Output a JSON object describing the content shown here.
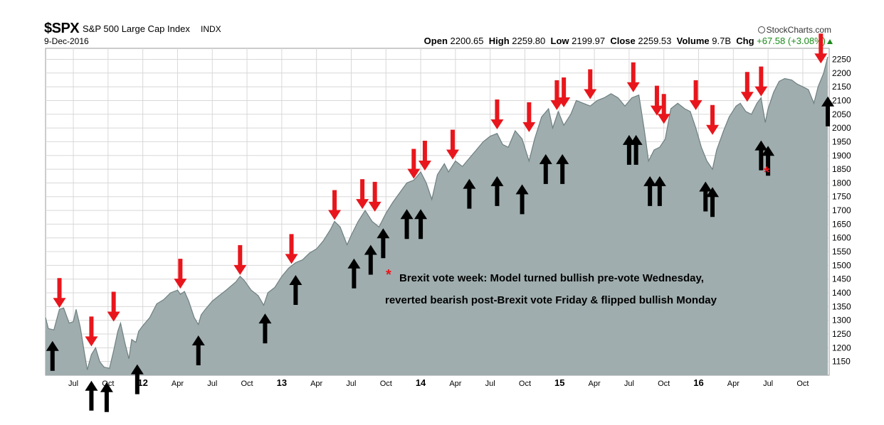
{
  "header": {
    "symbol": "$SPX",
    "name": "S&P 500 Large Cap Index",
    "exchange": "INDX",
    "date": "9-Dec-2016",
    "source": "StockCharts.com",
    "open_label": "Open",
    "open": "2200.65",
    "high_label": "High",
    "high": "2259.80",
    "low_label": "Low",
    "low": "2199.97",
    "close_label": "Close",
    "close": "2259.53",
    "volume_label": "Volume",
    "volume": "9.7B",
    "chg_label": "Chg",
    "chg": "+67.58 (+3.08%)"
  },
  "annotation": {
    "star": "*",
    "line1": "Brexit vote week: Model turned bullish pre-vote Wednesday,",
    "line2": "reverted bearish post-Brexit vote Friday & flipped bullish Monday"
  },
  "colors": {
    "area": "#9fadae",
    "line": "#6f7f80",
    "bear_arrow": "#e8161c",
    "bull_arrow": "#000000",
    "grid": "#d8d8d8",
    "star": "#e8161c",
    "chg": "#1a8a1a"
  },
  "chart_data": {
    "type": "area",
    "xlabel": "",
    "ylabel": "",
    "ylim": [
      1100,
      2290
    ],
    "grid": true,
    "y_ticks": [
      1150,
      1200,
      1250,
      1300,
      1350,
      1400,
      1450,
      1500,
      1550,
      1600,
      1650,
      1700,
      1750,
      1800,
      1850,
      1900,
      1950,
      2000,
      2050,
      2100,
      2150,
      2200,
      2250
    ],
    "x_ticks": [
      {
        "t": 2011.5,
        "label": "Jul",
        "bold": false
      },
      {
        "t": 2011.75,
        "label": "Oct",
        "bold": false
      },
      {
        "t": 2012.0,
        "label": "12",
        "bold": true
      },
      {
        "t": 2012.25,
        "label": "Apr",
        "bold": false
      },
      {
        "t": 2012.5,
        "label": "Jul",
        "bold": false
      },
      {
        "t": 2012.75,
        "label": "Oct",
        "bold": false
      },
      {
        "t": 2013.0,
        "label": "13",
        "bold": true
      },
      {
        "t": 2013.25,
        "label": "Apr",
        "bold": false
      },
      {
        "t": 2013.5,
        "label": "Jul",
        "bold": false
      },
      {
        "t": 2013.75,
        "label": "Oct",
        "bold": false
      },
      {
        "t": 2014.0,
        "label": "14",
        "bold": true
      },
      {
        "t": 2014.25,
        "label": "Apr",
        "bold": false
      },
      {
        "t": 2014.5,
        "label": "Jul",
        "bold": false
      },
      {
        "t": 2014.75,
        "label": "Oct",
        "bold": false
      },
      {
        "t": 2015.0,
        "label": "15",
        "bold": true
      },
      {
        "t": 2015.25,
        "label": "Apr",
        "bold": false
      },
      {
        "t": 2015.5,
        "label": "Jul",
        "bold": false
      },
      {
        "t": 2015.75,
        "label": "Oct",
        "bold": false
      },
      {
        "t": 2016.0,
        "label": "16",
        "bold": true
      },
      {
        "t": 2016.25,
        "label": "Apr",
        "bold": false
      },
      {
        "t": 2016.5,
        "label": "Jul",
        "bold": false
      },
      {
        "t": 2016.75,
        "label": "Oct",
        "bold": false
      }
    ],
    "series": [
      {
        "points": [
          [
            2011.3,
            1310
          ],
          [
            2011.32,
            1270
          ],
          [
            2011.36,
            1265
          ],
          [
            2011.4,
            1340
          ],
          [
            2011.43,
            1345
          ],
          [
            2011.47,
            1290
          ],
          [
            2011.5,
            1295
          ],
          [
            2011.52,
            1340
          ],
          [
            2011.55,
            1275
          ],
          [
            2011.58,
            1180
          ],
          [
            2011.6,
            1120
          ],
          [
            2011.63,
            1175
          ],
          [
            2011.66,
            1200
          ],
          [
            2011.69,
            1150
          ],
          [
            2011.72,
            1130
          ],
          [
            2011.76,
            1125
          ],
          [
            2011.79,
            1190
          ],
          [
            2011.82,
            1260
          ],
          [
            2011.84,
            1290
          ],
          [
            2011.87,
            1220
          ],
          [
            2011.9,
            1160
          ],
          [
            2011.92,
            1230
          ],
          [
            2011.95,
            1220
          ],
          [
            2011.97,
            1260
          ],
          [
            2012.0,
            1280
          ],
          [
            2012.05,
            1310
          ],
          [
            2012.1,
            1360
          ],
          [
            2012.15,
            1375
          ],
          [
            2012.2,
            1400
          ],
          [
            2012.25,
            1410
          ],
          [
            2012.27,
            1395
          ],
          [
            2012.3,
            1405
          ],
          [
            2012.33,
            1370
          ],
          [
            2012.37,
            1310
          ],
          [
            2012.4,
            1285
          ],
          [
            2012.42,
            1320
          ],
          [
            2012.45,
            1340
          ],
          [
            2012.5,
            1370
          ],
          [
            2012.55,
            1390
          ],
          [
            2012.6,
            1410
          ],
          [
            2012.67,
            1440
          ],
          [
            2012.7,
            1460
          ],
          [
            2012.73,
            1445
          ],
          [
            2012.78,
            1410
          ],
          [
            2012.83,
            1390
          ],
          [
            2012.87,
            1355
          ],
          [
            2012.9,
            1400
          ],
          [
            2012.95,
            1420
          ],
          [
            2013.0,
            1460
          ],
          [
            2013.05,
            1490
          ],
          [
            2013.1,
            1510
          ],
          [
            2013.15,
            1520
          ],
          [
            2013.2,
            1545
          ],
          [
            2013.25,
            1560
          ],
          [
            2013.3,
            1590
          ],
          [
            2013.35,
            1630
          ],
          [
            2013.38,
            1660
          ],
          [
            2013.42,
            1640
          ],
          [
            2013.47,
            1575
          ],
          [
            2013.5,
            1610
          ],
          [
            2013.55,
            1660
          ],
          [
            2013.6,
            1700
          ],
          [
            2013.65,
            1660
          ],
          [
            2013.7,
            1640
          ],
          [
            2013.75,
            1690
          ],
          [
            2013.8,
            1730
          ],
          [
            2013.85,
            1765
          ],
          [
            2013.9,
            1800
          ],
          [
            2013.95,
            1810
          ],
          [
            2014.0,
            1840
          ],
          [
            2014.04,
            1800
          ],
          [
            2014.08,
            1740
          ],
          [
            2014.12,
            1830
          ],
          [
            2014.17,
            1870
          ],
          [
            2014.2,
            1840
          ],
          [
            2014.25,
            1880
          ],
          [
            2014.3,
            1860
          ],
          [
            2014.35,
            1890
          ],
          [
            2014.4,
            1920
          ],
          [
            2014.45,
            1950
          ],
          [
            2014.5,
            1970
          ],
          [
            2014.55,
            1980
          ],
          [
            2014.59,
            1940
          ],
          [
            2014.63,
            1930
          ],
          [
            2014.68,
            1990
          ],
          [
            2014.73,
            1960
          ],
          [
            2014.78,
            1880
          ],
          [
            2014.82,
            1960
          ],
          [
            2014.87,
            2040
          ],
          [
            2014.92,
            2070
          ],
          [
            2014.95,
            2000
          ],
          [
            2014.99,
            2060
          ],
          [
            2015.03,
            2010
          ],
          [
            2015.08,
            2050
          ],
          [
            2015.12,
            2100
          ],
          [
            2015.17,
            2090
          ],
          [
            2015.22,
            2080
          ],
          [
            2015.27,
            2100
          ],
          [
            2015.32,
            2110
          ],
          [
            2015.37,
            2125
          ],
          [
            2015.42,
            2110
          ],
          [
            2015.47,
            2080
          ],
          [
            2015.52,
            2110
          ],
          [
            2015.57,
            2120
          ],
          [
            2015.61,
            1990
          ],
          [
            2015.64,
            1880
          ],
          [
            2015.68,
            1920
          ],
          [
            2015.72,
            1930
          ],
          [
            2015.76,
            1960
          ],
          [
            2015.8,
            2070
          ],
          [
            2015.85,
            2090
          ],
          [
            2015.9,
            2070
          ],
          [
            2015.94,
            2060
          ],
          [
            2015.98,
            2000
          ],
          [
            2016.02,
            1930
          ],
          [
            2016.06,
            1880
          ],
          [
            2016.1,
            1850
          ],
          [
            2016.13,
            1920
          ],
          [
            2016.18,
            1990
          ],
          [
            2016.22,
            2040
          ],
          [
            2016.27,
            2080
          ],
          [
            2016.3,
            2090
          ],
          [
            2016.34,
            2060
          ],
          [
            2016.38,
            2050
          ],
          [
            2016.42,
            2090
          ],
          [
            2016.45,
            2110
          ],
          [
            2016.48,
            2020
          ],
          [
            2016.5,
            2070
          ],
          [
            2016.54,
            2130
          ],
          [
            2016.58,
            2170
          ],
          [
            2016.62,
            2180
          ],
          [
            2016.67,
            2175
          ],
          [
            2016.71,
            2160
          ],
          [
            2016.75,
            2150
          ],
          [
            2016.79,
            2140
          ],
          [
            2016.83,
            2090
          ],
          [
            2016.86,
            2150
          ],
          [
            2016.9,
            2200
          ],
          [
            2016.93,
            2259
          ]
        ]
      }
    ],
    "bear_arrows": [
      [
        2011.4,
        1340
      ],
      [
        2011.63,
        1200
      ],
      [
        2011.79,
        1290
      ],
      [
        2012.27,
        1410
      ],
      [
        2012.7,
        1460
      ],
      [
        2013.07,
        1500
      ],
      [
        2013.38,
        1660
      ],
      [
        2013.58,
        1700
      ],
      [
        2013.67,
        1690
      ],
      [
        2013.95,
        1810
      ],
      [
        2014.03,
        1840
      ],
      [
        2014.23,
        1880
      ],
      [
        2014.55,
        1990
      ],
      [
        2014.78,
        1980
      ],
      [
        2014.98,
        2060
      ],
      [
        2015.03,
        2070
      ],
      [
        2015.22,
        2100
      ],
      [
        2015.53,
        2125
      ],
      [
        2015.7,
        2040
      ],
      [
        2015.75,
        2010
      ],
      [
        2015.98,
        2060
      ],
      [
        2016.1,
        1970
      ],
      [
        2016.35,
        2090
      ],
      [
        2016.45,
        2110
      ],
      [
        2016.88,
        2230
      ]
    ],
    "bull_arrows": [
      [
        2011.35,
        1230
      ],
      [
        2011.63,
        1085
      ],
      [
        2011.74,
        1080
      ],
      [
        2011.96,
        1145
      ],
      [
        2012.4,
        1250
      ],
      [
        2012.88,
        1330
      ],
      [
        2013.1,
        1470
      ],
      [
        2013.52,
        1530
      ],
      [
        2013.64,
        1580
      ],
      [
        2013.73,
        1640
      ],
      [
        2013.9,
        1710
      ],
      [
        2014.0,
        1710
      ],
      [
        2014.35,
        1820
      ],
      [
        2014.55,
        1830
      ],
      [
        2014.73,
        1800
      ],
      [
        2014.9,
        1910
      ],
      [
        2015.02,
        1910
      ],
      [
        2015.5,
        1980
      ],
      [
        2015.55,
        1980
      ],
      [
        2015.65,
        1830
      ],
      [
        2015.72,
        1830
      ],
      [
        2016.05,
        1810
      ],
      [
        2016.1,
        1790
      ],
      [
        2016.45,
        1960
      ],
      [
        2016.5,
        1940
      ],
      [
        2016.93,
        2120
      ]
    ],
    "star_marker": [
      2016.49,
      1840
    ]
  }
}
